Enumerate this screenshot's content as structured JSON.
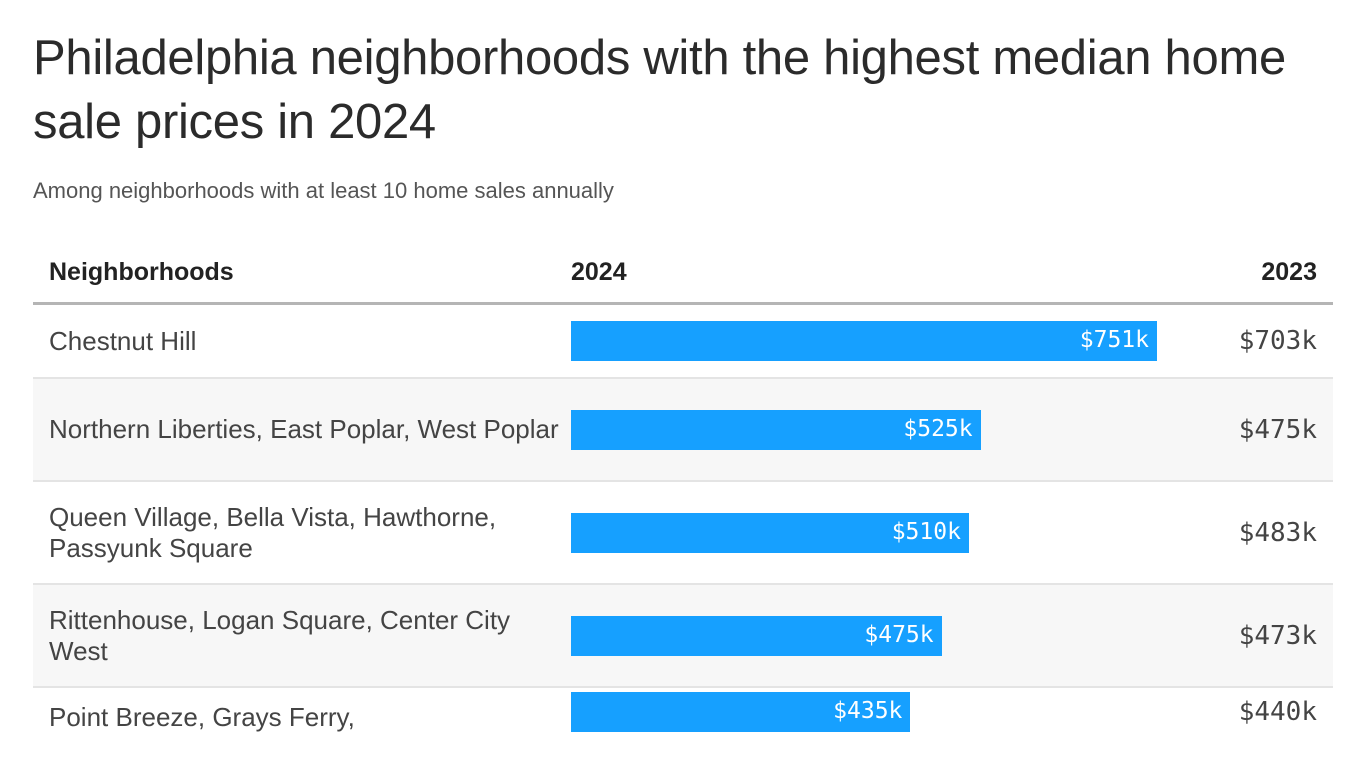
{
  "title": "Philadelphia neighborhoods with the highest median home sale prices in 2024",
  "subtitle": "Among neighborhoods with at least 10 home sales annually",
  "colors": {
    "bar": "#16a0ff"
  },
  "chart_data": {
    "type": "table",
    "columns": [
      "Neighborhoods",
      "2024",
      "2023"
    ],
    "rows": [
      {
        "name": "Chestnut Hill",
        "v2024": 751,
        "v2024_label": "$751k",
        "v2023_label": "$703k"
      },
      {
        "name": "Northern Liberties, East Poplar, West Poplar",
        "v2024": 525,
        "v2024_label": "$525k",
        "v2023_label": "$475k"
      },
      {
        "name": "Queen Village, Bella Vista, Hawthorne, Passyunk Square",
        "v2024": 510,
        "v2024_label": "$510k",
        "v2023_label": "$483k"
      },
      {
        "name": "Rittenhouse, Logan Square, Center City West",
        "v2024": 475,
        "v2024_label": "$475k",
        "v2023_label": "$473k"
      },
      {
        "name": "Point Breeze, Grays Ferry,",
        "v2024": 435,
        "v2024_label": "$435k",
        "v2023_label": "$440k"
      }
    ]
  }
}
